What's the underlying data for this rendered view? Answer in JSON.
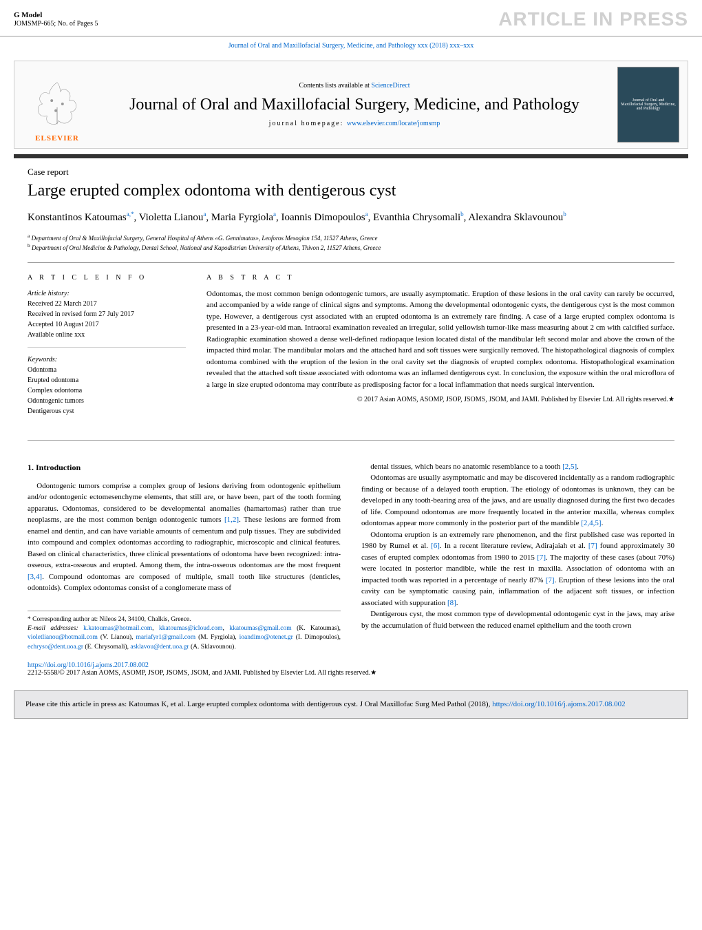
{
  "gmodel": {
    "label": "G Model",
    "code": "JOMSMP-665;   No. of Pages 5"
  },
  "article_in_press": "ARTICLE IN PRESS",
  "journal_ref": "Journal of Oral and Maxillofacial Surgery, Medicine, and Pathology xxx (2018) xxx–xxx",
  "banner": {
    "contents_prefix": "Contents lists available at ",
    "sciencedirect": "ScienceDirect",
    "journal_name": "Journal of Oral and Maxillofacial Surgery, Medicine, and Pathology",
    "homepage_prefix": "journal homepage: ",
    "homepage_url": "www.elsevier.com/locate/jomsmp",
    "elsevier": "ELSEVIER",
    "cover_text": "Journal of Oral and Maxillofacial Surgery, Medicine, and Pathology"
  },
  "article": {
    "type": "Case report",
    "title": "Large erupted complex odontoma with dentigerous cyst",
    "authors_html": "Konstantinos Katoumas<sup>a,*</sup>, Violetta Lianou<sup>a</sup>, Maria Fyrgiola<sup>a</sup>, Ioannis Dimopoulos<sup>a</sup>, Evanthia Chrysomali<sup>b</sup>, Alexandra Sklavounou<sup>b</sup>",
    "affiliations": {
      "a": "Department of Oral & Maxillofacial Surgery, General Hospital of Athens «G. Gennimatas», Leoforos Mesogion 154, 11527 Athens, Greece",
      "b": "Department of Oral Medicine & Pathology, Dental School, National and Kapodistrian University of Athens, Thivon 2, 11527 Athens, Greece"
    }
  },
  "info": {
    "heading": "a r t i c l e   i n f o",
    "history_label": "Article history:",
    "received": "Received 22 March 2017",
    "revised": "Received in revised form 27 July 2017",
    "accepted": "Accepted 10 August 2017",
    "available": "Available online xxx",
    "keywords_label": "Keywords:",
    "keywords": [
      "Odontoma",
      "Erupted odontoma",
      "Complex odontoma",
      "Odontogenic tumors",
      "Dentigerous cyst"
    ]
  },
  "abstract": {
    "heading": "a b s t r a c t",
    "text": "Odontomas, the most common benign odontogenic tumors, are usually asymptomatic. Eruption of these lesions in the oral cavity can rarely be occurred, and accompanied by a wide range of clinical signs and symptoms. Among the developmental odontogenic cysts, the dentigerous cyst is the most common type. However, a dentigerous cyst associated with an erupted odontoma is an extremely rare finding. A case of a large erupted complex odontoma is presented in a 23-year-old man. Intraoral examination revealed an irregular, solid yellowish tumor-like mass measuring about 2 cm with calcified surface. Radiographic examination showed a dense well-defined radiopaque lesion located distal of the mandibular left second molar and above the crown of the impacted third molar. The mandibular molars and the attached hard and soft tissues were surgically removed. The histopathological diagnosis of complex odontoma combined with the eruption of the lesion in the oral cavity set the diagnosis of erupted complex odontoma. Histopathological examination revealed that the attached soft tissue associated with odontoma was an inflamed dentigerous cyst. In conclusion, the exposure within the oral microflora of a large in size erupted odontoma may contribute as predisposing factor for a local inflammation that needs surgical intervention.",
    "copyright": "© 2017 Asian AOMS, ASOMP, JSOP, JSOMS, JSOM, and JAMI. Published by Elsevier Ltd. All rights reserved.★"
  },
  "body": {
    "intro_heading": "1.  Introduction",
    "left_paras": [
      "Odontogenic tumors comprise a complex group of lesions deriving from odontogenic epithelium and/or odontogenic ectomesenchyme elements, that still are, or have been, part of the tooth forming apparatus. Odontomas, considered to be developmental anomalies (hamartomas) rather than true neoplasms, are the most common benign odontogenic tumors [1,2]. These lesions are formed from enamel and dentin, and can have variable amounts of cementum and pulp tissues. They are subdivided into compound and complex odontomas according to radiographic, microscopic and clinical features. Based on clinical characteristics, three clinical presentations of odontoma have been recognized: intra-osseous, extra-osseous and erupted. Among them, the intra-osseous odontomas are the most frequent [3,4]. Compound odontomas are composed of multiple, small tooth like structures (denticles, odontoids). Complex odontomas consist of a conglomerate mass of"
    ],
    "right_paras": [
      "dental tissues, which bears no anatomic resemblance to a tooth [2,5].",
      "Odontomas are usually asymptomatic and may be discovered incidentally as a random radiographic finding or because of a delayed tooth eruption. The etiology of odontomas is unknown, they can be developed in any tooth-bearing area of the jaws, and are usually diagnosed during the first two decades of life. Compound odontomas are more frequently located in the anterior maxilla, whereas complex odontomas appear more commonly in the posterior part of the mandible [2,4,5].",
      "Odontoma eruption is an extremely rare phenomenon, and the first published case was reported in 1980 by Rumel et al. [6]. In a recent literature review, Adirajaiah et al. [7] found approximately 30 cases of erupted complex odontomas from 1980 to 2015 [7]. The majority of these cases (about 70%) were located in posterior mandible, while the rest in maxilla. Association of odontoma with an impacted tooth was reported in a percentage of nearly 87% [7]. Eruption of these lesions into the oral cavity can be symptomatic causing pain, inflammation of the adjacent soft tissues, or infection associated with suppuration [8].",
      "Dentigerous cyst, the most common type of developmental odontogenic cyst in the jaws, may arise by the accumulation of fluid between the reduced enamel epithelium and the tooth crown"
    ]
  },
  "footnote": {
    "corr_label": "* Corresponding author at: Nileos 24, 34100, Chalkis, Greece.",
    "email_label": "E-mail addresses: ",
    "emails": [
      {
        "addr": "k.katoumas@hotmail.com",
        "name": ""
      },
      {
        "addr": "kkatoumas@icloud.com",
        "name": ""
      },
      {
        "addr": "kkatoumas@gmail.com",
        "name": "(K. Katoumas)"
      },
      {
        "addr": "violetlianou@hotmail.com",
        "name": "(V. Lianou)"
      },
      {
        "addr": "mariafyr1@gmail.com",
        "name": "(M. Fyrgiola)"
      },
      {
        "addr": "ioandimo@otenet.gr",
        "name": "(I. Dimopoulos)"
      },
      {
        "addr": "echryso@dent.uoa.gr",
        "name": "(E. Chrysomali)"
      },
      {
        "addr": "asklavou@dent.uoa.gr",
        "name": "(A. Sklavounou)"
      }
    ]
  },
  "doi": {
    "url": "https://doi.org/10.1016/j.ajoms.2017.08.002",
    "copyright": "2212-5558/© 2017 Asian AOMS, ASOMP, JSOP, JSOMS, JSOM, and JAMI. Published by Elsevier Ltd. All rights reserved.★"
  },
  "citebox": {
    "text_prefix": "Please cite this article in press as: Katoumas K, et al. Large erupted complex odontoma with dentigerous cyst. J Oral Maxillofac Surg Med Pathol (2018), ",
    "url": "https://doi.org/10.1016/j.ajoms.2017.08.002"
  },
  "colors": {
    "link": "#0066cc",
    "press_gray": "#d0d0d0",
    "elsevier_orange": "#ff6600",
    "cover_bg": "#2a4a5a",
    "citebox_bg": "#e8e8ea"
  }
}
